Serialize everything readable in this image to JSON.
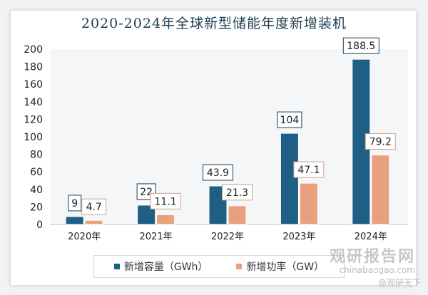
{
  "chart_data": {
    "type": "bar",
    "title": "2020-2024年全球新型储能年度新增装机",
    "categories": [
      "2020年",
      "2021年",
      "2022年",
      "2023年",
      "2024年"
    ],
    "series": [
      {
        "name": "新增容量（GWh）",
        "values": [
          9,
          22,
          43.9,
          104,
          188.5
        ],
        "color": "#1f5f85"
      },
      {
        "name": "新增功率（GW）",
        "values": [
          4.7,
          11.1,
          21.3,
          47.1,
          79.2
        ],
        "color": "#e8a07f"
      }
    ],
    "data_labels": [
      [
        "9",
        "22",
        "43.9",
        "104",
        "188.5"
      ],
      [
        "4.7",
        "11.1",
        "21.3",
        "47.1",
        "79.2"
      ]
    ],
    "yticks": [
      "0",
      "20",
      "40",
      "60",
      "80",
      "100",
      "120",
      "140",
      "160",
      "180",
      "200"
    ],
    "ylim": [
      0,
      200
    ],
    "legend": "bottom",
    "grid": false
  },
  "watermark": {
    "brand": "观研报告网",
    "url": "chinabaogao.com",
    "handle": "@观研天下"
  }
}
